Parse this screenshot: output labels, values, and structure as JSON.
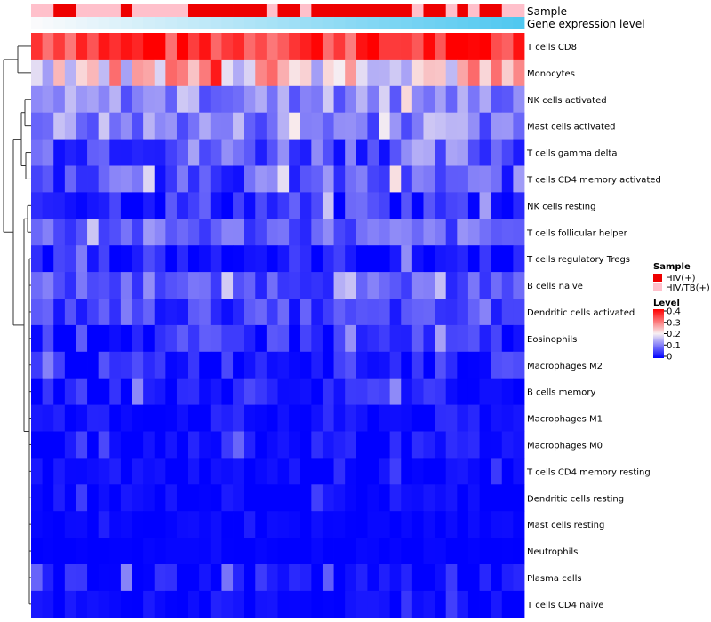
{
  "chart_data": {
    "type": "heatmap",
    "rows": [
      "T cells CD8",
      "Monocytes",
      "NK cells activated",
      "Mast cells activated",
      "T cells gamma delta",
      "T cells CD4 memory activated",
      "NK cells resting",
      "T cells follicular helper",
      "T cells regulatory  Tregs",
      "B cells naive",
      "Dendritic cells activated",
      "Eosinophils",
      "Macrophages M2",
      "B cells memory",
      "Macrophages M1",
      "Macrophages M0",
      "T cells CD4 memory resting",
      "Dendritic cells resting",
      "Mast cells resting",
      "Neutrophils",
      "Plasma cells",
      "T cells CD4 naive"
    ],
    "n_columns": 44,
    "annotations": {
      "sample_label": "Sample",
      "gene_label": "Gene expression level",
      "sample_sequence": "BBAABBBBABBBBBAAAAAAABAABAAAAAAAAABAABABAABB",
      "sample_code_map": {
        "A": "HIV(+)",
        "B": "HIV/TB(+)"
      },
      "gene_range": [
        0,
        1
      ]
    },
    "legend_sample": {
      "title": "Sample",
      "items": [
        {
          "label": "HIV(+)",
          "color": "#ee0000"
        },
        {
          "label": "HIV/TB(+)",
          "color": "#ffc0cb"
        }
      ]
    },
    "legend_level": {
      "title": "Level",
      "ticks": [
        "0.4",
        "0.3",
        "0.2",
        "0.1",
        "0"
      ],
      "range": [
        0,
        0.4
      ],
      "low_color": "#0000ff",
      "mid_color": "#f8f0f2",
      "high_color": "#ff0000",
      "mid_value": 0.2
    },
    "row_levels": [
      {
        "base": 0.36,
        "spread": 0.07
      },
      {
        "base": 0.23,
        "spread": 0.1
      },
      {
        "base": 0.11,
        "spread": 0.05
      },
      {
        "base": 0.11,
        "spread": 0.06
      },
      {
        "base": 0.08,
        "spread": 0.07
      },
      {
        "base": 0.07,
        "spread": 0.06
      },
      {
        "base": 0.04,
        "spread": 0.05
      },
      {
        "base": 0.08,
        "spread": 0.05
      },
      {
        "base": 0.02,
        "spread": 0.04
      },
      {
        "base": 0.07,
        "spread": 0.04
      },
      {
        "base": 0.05,
        "spread": 0.04
      },
      {
        "base": 0.03,
        "spread": 0.05
      },
      {
        "base": 0.03,
        "spread": 0.04
      },
      {
        "base": 0.02,
        "spread": 0.04
      },
      {
        "base": 0.01,
        "spread": 0.03
      },
      {
        "base": 0.01,
        "spread": 0.03
      },
      {
        "base": 0.005,
        "spread": 0.02
      },
      {
        "base": 0.005,
        "spread": 0.02
      },
      {
        "base": 0.003,
        "spread": 0.01
      },
      {
        "base": 0.002,
        "spread": 0.005
      },
      {
        "base": 0.01,
        "spread": 0.04
      },
      {
        "base": 0.004,
        "spread": 0.02
      }
    ],
    "seed": 7
  }
}
